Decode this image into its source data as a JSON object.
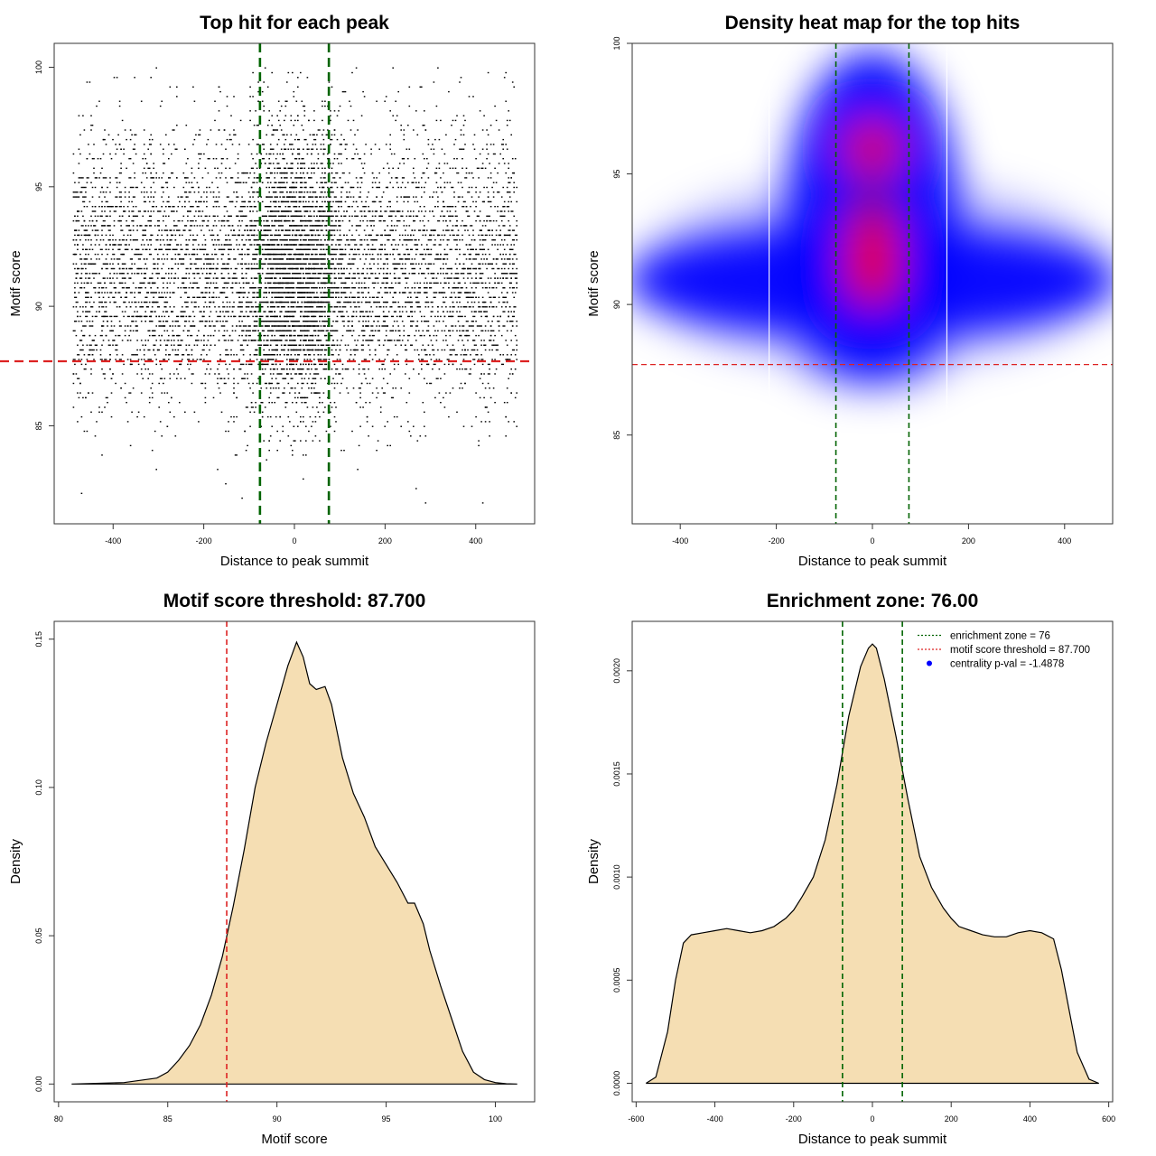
{
  "chart_data": [
    {
      "type": "scatter",
      "title": "Top hit for each peak",
      "xlabel": "Distance to peak summit",
      "ylabel": "Motif score",
      "xlim": [
        -530,
        530
      ],
      "ylim": [
        80.9,
        101.0
      ],
      "xticks": [
        "-400",
        "-200",
        "0",
        "200",
        "400"
      ],
      "yticks": [
        "85",
        "90",
        "95",
        "100"
      ],
      "point_x_range": [
        -490,
        490
      ],
      "point_y_range": [
        81.6,
        100
      ],
      "point_y_mode": 91.0,
      "hlines": [
        {
          "y": 87.7,
          "color": "#dd2222",
          "style": "dashed"
        }
      ],
      "vlines": [
        {
          "x": -76,
          "color": "#006400",
          "style": "dashed"
        },
        {
          "x": 76,
          "color": "#006400",
          "style": "dashed"
        }
      ],
      "grid": false
    },
    {
      "type": "heatmap",
      "title": "Density heat map for the top hits",
      "xlabel": "Distance to peak summit",
      "ylabel": "Motif score",
      "xlim": [
        -500,
        500
      ],
      "ylim": [
        81.6,
        100
      ],
      "xticks": [
        "-400",
        "-200",
        "0",
        "200",
        "400"
      ],
      "yticks": [
        "85",
        "90",
        "95",
        "100"
      ],
      "colors": {
        "low": "#ffffff",
        "mid": "#0000ff",
        "high": "#ff0000"
      },
      "hotspots": [
        {
          "x": 0,
          "y": 91.0,
          "level": "high"
        },
        {
          "x": 0,
          "y": 92.3,
          "level": "high"
        },
        {
          "x": 0,
          "y": 96.0,
          "level": "high"
        },
        {
          "x": -450,
          "y": 90.8,
          "level": "mid"
        },
        {
          "x": 450,
          "y": 90.8,
          "level": "mid"
        }
      ],
      "hlines": [
        {
          "y": 87.7,
          "color": "#dd2222",
          "style": "dashed"
        }
      ],
      "vlines": [
        {
          "x": -76,
          "color": "#006400",
          "style": "dashed"
        },
        {
          "x": 76,
          "color": "#006400",
          "style": "dashed"
        }
      ],
      "grid": false
    },
    {
      "type": "area",
      "title": "Motif score threshold: 87.700",
      "xlabel": "Motif score",
      "ylabel": "Density",
      "xlim": [
        79.8,
        101.8
      ],
      "ylim": [
        -0.006,
        0.156
      ],
      "xticks": [
        "80",
        "85",
        "90",
        "95",
        "100"
      ],
      "yticks": [
        "0.00",
        "0.05",
        "0.10",
        "0.15"
      ],
      "fill": "#f5deb3",
      "x": [
        80.6,
        83.0,
        84.5,
        85.0,
        85.5,
        86.0,
        86.5,
        87.0,
        87.5,
        88.0,
        88.5,
        89.0,
        89.5,
        90.0,
        90.5,
        90.9,
        91.2,
        91.5,
        91.8,
        92.2,
        92.5,
        93.0,
        93.5,
        94.0,
        94.5,
        95.0,
        95.5,
        96.0,
        96.3,
        96.7,
        97.0,
        97.5,
        98.0,
        98.5,
        99.0,
        99.5,
        100.0,
        100.5,
        101.0
      ],
      "y": [
        0.0,
        0.0005,
        0.002,
        0.004,
        0.008,
        0.013,
        0.02,
        0.03,
        0.043,
        0.06,
        0.079,
        0.1,
        0.115,
        0.128,
        0.141,
        0.149,
        0.144,
        0.135,
        0.133,
        0.134,
        0.128,
        0.11,
        0.098,
        0.09,
        0.08,
        0.074,
        0.068,
        0.061,
        0.061,
        0.054,
        0.045,
        0.033,
        0.022,
        0.011,
        0.004,
        0.0015,
        0.0005,
        0.0001,
        0.0
      ],
      "vlines": [
        {
          "x": 87.7,
          "color": "#dd2222",
          "style": "dashed"
        }
      ],
      "grid": false
    },
    {
      "type": "area",
      "title": "Enrichment zone: 76.00",
      "xlabel": "Distance to peak summit",
      "ylabel": "Density",
      "xlim": [
        -610,
        610
      ],
      "ylim": [
        -9e-05,
        0.00224
      ],
      "xticks": [
        "-600",
        "-400",
        "-200",
        "0",
        "200",
        "400",
        "600"
      ],
      "yticks": [
        "0.0000",
        "0.0005",
        "0.0010",
        "0.0015",
        "0.0020"
      ],
      "fill": "#f5deb3",
      "x": [
        -575,
        -550,
        -520,
        -500,
        -480,
        -460,
        -430,
        -400,
        -370,
        -340,
        -310,
        -280,
        -250,
        -220,
        -200,
        -180,
        -150,
        -120,
        -90,
        -60,
        -30,
        -10,
        0,
        10,
        30,
        60,
        90,
        120,
        150,
        180,
        200,
        220,
        250,
        280,
        310,
        340,
        370,
        400,
        430,
        460,
        480,
        500,
        520,
        550,
        575
      ],
      "y": [
        0.0,
        3e-05,
        0.00025,
        0.0005,
        0.00068,
        0.00072,
        0.00073,
        0.00074,
        0.00075,
        0.00074,
        0.00073,
        0.00074,
        0.00076,
        0.0008,
        0.00084,
        0.0009,
        0.001,
        0.00118,
        0.00145,
        0.00178,
        0.00202,
        0.00211,
        0.00213,
        0.00211,
        0.00196,
        0.00168,
        0.00138,
        0.0011,
        0.00095,
        0.00085,
        0.0008,
        0.00076,
        0.00074,
        0.00072,
        0.00071,
        0.00071,
        0.00073,
        0.00074,
        0.00073,
        0.0007,
        0.00055,
        0.00035,
        0.00015,
        2e-05,
        0.0
      ],
      "vlines": [
        {
          "x": -76,
          "color": "#006400",
          "style": "dashed"
        },
        {
          "x": 76,
          "color": "#006400",
          "style": "dashed"
        }
      ],
      "legend": {
        "position": "top-right",
        "entries": [
          {
            "label": "enrichment zone = 76",
            "color": "#006400",
            "style": "dotted-line"
          },
          {
            "label": "motif score threshold = 87.700",
            "color": "#dd2222",
            "style": "dotted-line"
          },
          {
            "label": "centrality p-val = -1.4878",
            "color": "#0000ff",
            "style": "point"
          }
        ]
      },
      "grid": false
    }
  ]
}
